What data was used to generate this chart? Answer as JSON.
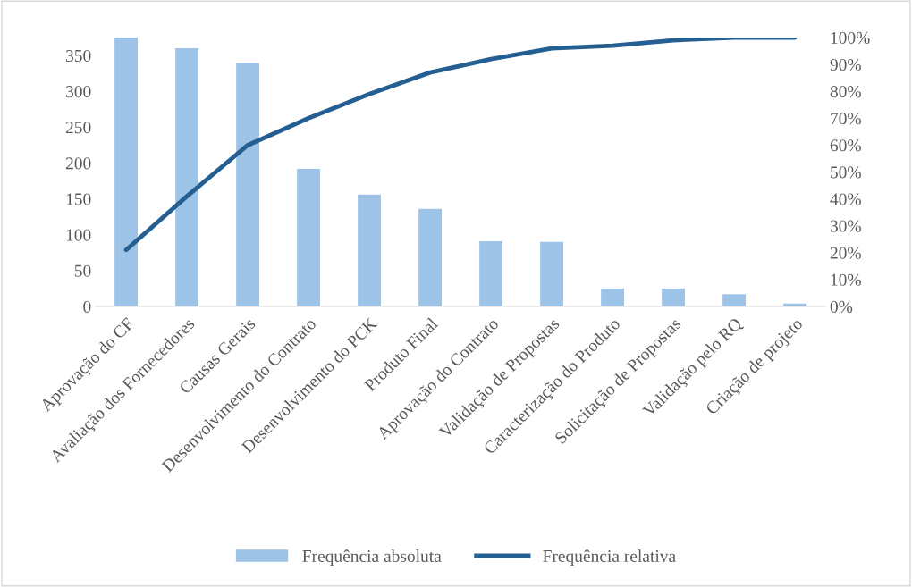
{
  "chart_data": {
    "type": "bar",
    "categories": [
      "Aprovação do CF",
      "Avaliação dos Fornecedores",
      "Causas Gerais",
      "Desenvolvimento do Contrato",
      "Desenvolvimento do PCK",
      "Produto Final",
      "Aprovação do Contrato",
      "Validação de Propostas",
      "Caracterização do Produto",
      "Solicitação de Propostas",
      "Validação pelo RQ",
      "Criação de projeto"
    ],
    "series": [
      {
        "name": "Frequência absoluta",
        "color": "#9dc3e6",
        "values": [
          375,
          360,
          340,
          192,
          156,
          136,
          91,
          90,
          25,
          25,
          17,
          4
        ]
      },
      {
        "name": "Frequência relativa",
        "type": "line",
        "axis": "y2",
        "color": "#255e91",
        "values": [
          21,
          41,
          60,
          70,
          79,
          87,
          92,
          96,
          97,
          99,
          100,
          100
        ]
      }
    ],
    "ylim": [
      0,
      375
    ],
    "yticks": [
      0,
      50,
      100,
      150,
      200,
      250,
      300,
      350
    ],
    "y2lim": [
      0,
      100
    ],
    "y2ticks": [
      {
        "value": 0,
        "label": "0%"
      },
      {
        "value": 10,
        "label": "10%"
      },
      {
        "value": 20,
        "label": "20%"
      },
      {
        "value": 30,
        "label": "30%"
      },
      {
        "value": 40,
        "label": "40%"
      },
      {
        "value": 50,
        "label": "50%"
      },
      {
        "value": 60,
        "label": "60%"
      },
      {
        "value": 70,
        "label": "70%"
      },
      {
        "value": 80,
        "label": "80%"
      },
      {
        "value": 90,
        "label": "90%"
      },
      {
        "value": 100,
        "label": "100%"
      }
    ],
    "grid": false,
    "legend": "bottom",
    "marker": "none",
    "line_style": "solid"
  }
}
